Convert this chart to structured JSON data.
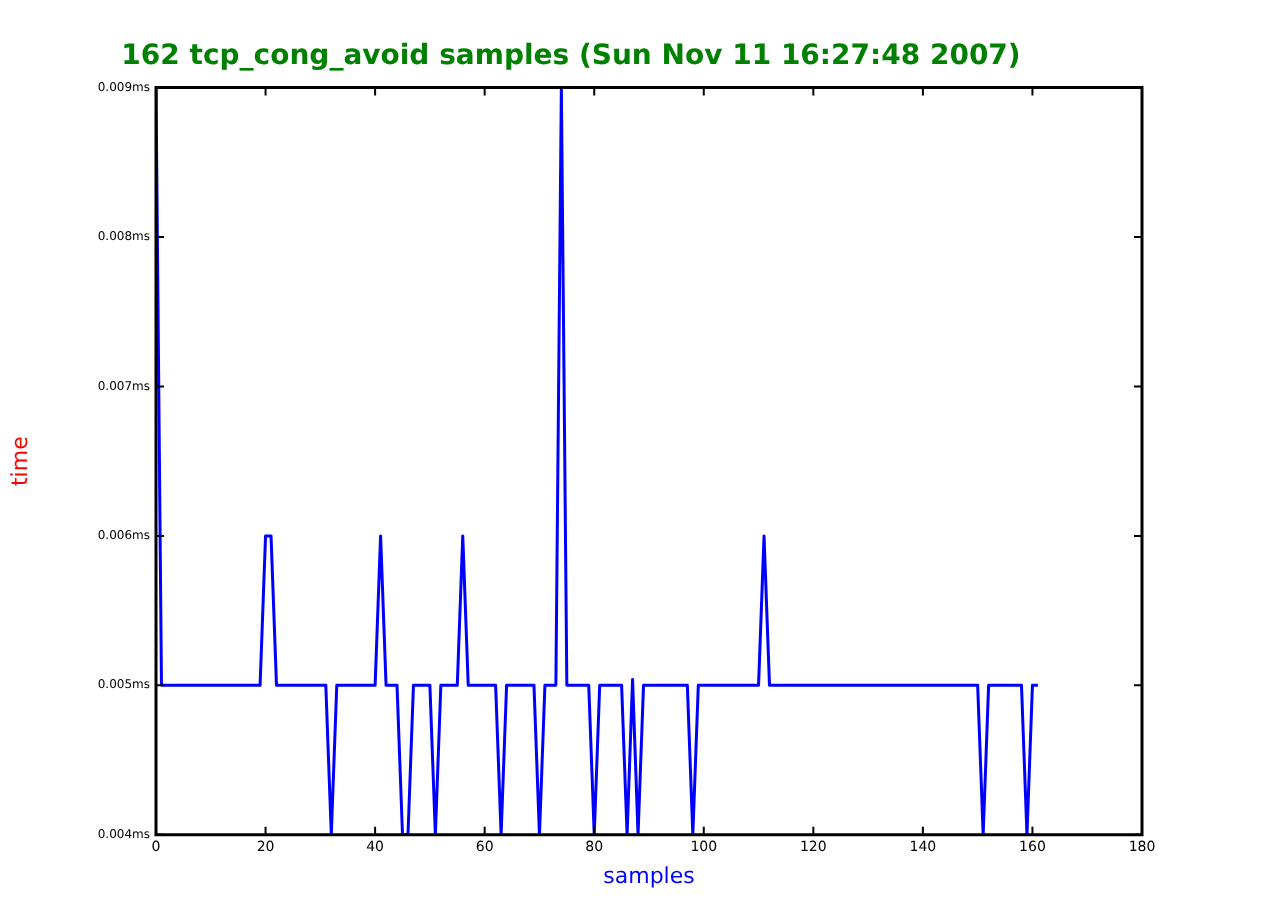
{
  "chart_data": {
    "type": "line",
    "title": "162 tcp_cong_avoid samples (Sun Nov 11 16:27:48 2007)",
    "xlabel": "samples",
    "ylabel": "time",
    "x": [
      0,
      1,
      2,
      3,
      4,
      5,
      6,
      7,
      8,
      9,
      10,
      11,
      12,
      13,
      14,
      15,
      16,
      17,
      18,
      19,
      20,
      21,
      22,
      23,
      24,
      25,
      26,
      27,
      28,
      29,
      30,
      31,
      32,
      33,
      34,
      35,
      36,
      37,
      38,
      39,
      40,
      41,
      42,
      43,
      44,
      45,
      46,
      47,
      48,
      49,
      50,
      51,
      52,
      53,
      54,
      55,
      56,
      57,
      58,
      59,
      60,
      61,
      62,
      63,
      64,
      65,
      66,
      67,
      68,
      69,
      70,
      71,
      72,
      73,
      74,
      75,
      76,
      77,
      78,
      79,
      80,
      81,
      82,
      83,
      84,
      85,
      86,
      87,
      88,
      89,
      90,
      91,
      92,
      93,
      94,
      95,
      96,
      97,
      98,
      99,
      100,
      101,
      102,
      103,
      104,
      105,
      106,
      107,
      108,
      109,
      110,
      111,
      112,
      113,
      114,
      115,
      116,
      117,
      118,
      119,
      120,
      121,
      122,
      123,
      124,
      125,
      126,
      127,
      128,
      129,
      130,
      131,
      132,
      133,
      134,
      135,
      136,
      137,
      138,
      139,
      140,
      141,
      142,
      143,
      144,
      145,
      146,
      147,
      148,
      149,
      150,
      151,
      152,
      153,
      154,
      155,
      156,
      157,
      158,
      159,
      160,
      161
    ],
    "series": [
      {
        "color": "#0000ff",
        "values": [
          0.009,
          0.005,
          0.005,
          0.005,
          0.005,
          0.005,
          0.005,
          0.005,
          0.005,
          0.005,
          0.005,
          0.005,
          0.005,
          0.005,
          0.005,
          0.005,
          0.005,
          0.005,
          0.005,
          0.005,
          0.006,
          0.006,
          0.005,
          0.005,
          0.005,
          0.005,
          0.005,
          0.005,
          0.005,
          0.005,
          0.005,
          0.005,
          0.004,
          0.005,
          0.005,
          0.005,
          0.005,
          0.005,
          0.005,
          0.005,
          0.005,
          0.006,
          0.005,
          0.005,
          0.005,
          0.004,
          0.004,
          0.005,
          0.005,
          0.005,
          0.005,
          0.004,
          0.005,
          0.005,
          0.005,
          0.005,
          0.006,
          0.005,
          0.005,
          0.005,
          0.005,
          0.005,
          0.005,
          0.004,
          0.005,
          0.005,
          0.005,
          0.005,
          0.005,
          0.005,
          0.004,
          0.005,
          0.005,
          0.005,
          0.009,
          0.005,
          0.005,
          0.005,
          0.005,
          0.005,
          0.004,
          0.005,
          0.005,
          0.005,
          0.005,
          0.005,
          0.004,
          0.00504,
          0.004,
          0.005,
          0.005,
          0.005,
          0.005,
          0.005,
          0.005,
          0.005,
          0.005,
          0.005,
          0.004,
          0.005,
          0.005,
          0.005,
          0.005,
          0.005,
          0.005,
          0.005,
          0.005,
          0.005,
          0.005,
          0.005,
          0.005,
          0.006,
          0.005,
          0.005,
          0.005,
          0.005,
          0.005,
          0.005,
          0.005,
          0.005,
          0.005,
          0.005,
          0.005,
          0.005,
          0.005,
          0.005,
          0.005,
          0.005,
          0.005,
          0.005,
          0.005,
          0.005,
          0.005,
          0.005,
          0.005,
          0.005,
          0.005,
          0.005,
          0.005,
          0.005,
          0.005,
          0.005,
          0.005,
          0.005,
          0.005,
          0.005,
          0.005,
          0.005,
          0.005,
          0.005,
          0.005,
          0.004,
          0.005,
          0.005,
          0.005,
          0.005,
          0.005,
          0.005,
          0.005,
          0.004,
          0.005,
          0.005
        ]
      }
    ],
    "xlim": [
      0,
      180
    ],
    "xticks": [
      0,
      20,
      40,
      60,
      80,
      100,
      120,
      140,
      160,
      180
    ],
    "ylim": [
      0.004,
      0.009
    ],
    "yticks": [
      {
        "value": 0.004,
        "label": "0.004ms"
      },
      {
        "value": 0.005,
        "label": "0.005ms"
      },
      {
        "value": 0.006,
        "label": "0.006ms"
      },
      {
        "value": 0.007,
        "label": "0.007ms"
      },
      {
        "value": 0.008,
        "label": "0.008ms"
      },
      {
        "value": 0.009,
        "label": "0.009ms"
      }
    ],
    "grid": false,
    "legend": false,
    "marker": "none",
    "line_style": "solid"
  }
}
